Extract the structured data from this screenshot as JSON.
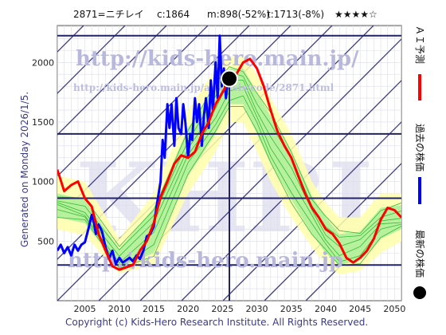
{
  "header": {
    "code": "2871=ニチレイ",
    "current": "c:1864",
    "median": "m:898(-52%)",
    "target": "t:1713(-8%)",
    "stars": "★★★★☆"
  },
  "side_label": "Generated on Monday 2026/1/5.",
  "footer": "Copyright (c) Kids-Hero Research Institute. All Rights Reserved.",
  "watermark": {
    "main": "http://kids-hero.main.jp/",
    "sub": "http://kids-hero.main.jp/analysis/code/2871.html",
    "bottom": "http://kids-hero.main.jp",
    "big": "KHRI"
  },
  "legend": {
    "ai_forecast": "ＡＩ予測",
    "past_price": "過去の株価",
    "latest_price": "最新の株価"
  },
  "colors": {
    "ai_forecast": "#ff0000",
    "past_price": "#0000ff",
    "latest_price": "#000000",
    "band_outer": "#ffffaa",
    "band_inner": "#aaee99",
    "band_lines": "#33bb33",
    "grid": "#9999bb",
    "levels": "#222266"
  },
  "chart_data": {
    "type": "line",
    "xlim": [
      2001,
      2051
    ],
    "ylim": [
      0,
      2310
    ],
    "x_ticks": [
      2005,
      2010,
      2015,
      2020,
      2025,
      2030,
      2035,
      2040,
      2045,
      2050
    ],
    "y_ticks": [
      500,
      1000,
      1500,
      2000
    ],
    "grid": true,
    "latest_point": {
      "x": 2026.0,
      "y": 1864
    },
    "current_year": 2026.0,
    "horizontal_levels": [
      2225,
      1400,
      860,
      300
    ],
    "series": [
      {
        "name": "過去の株価",
        "x": [
          2001.0,
          2001.5,
          2002.0,
          2002.5,
          2003.0,
          2003.5,
          2004.0,
          2004.5,
          2005.0,
          2005.5,
          2006.0,
          2006.3,
          2006.6,
          2007.0,
          2007.5,
          2008.0,
          2008.5,
          2009.0,
          2009.5,
          2010.0,
          2010.5,
          2011.0,
          2011.5,
          2012.0,
          2012.5,
          2013.0,
          2013.5,
          2014.0,
          2014.5,
          2015.0,
          2015.5,
          2016.0,
          2016.3,
          2016.6,
          2017.0,
          2017.3,
          2017.6,
          2018.0,
          2018.3,
          2018.6,
          2019.0,
          2019.3,
          2019.6,
          2020.0,
          2020.3,
          2020.6,
          2021.0,
          2021.3,
          2021.6,
          2022.0,
          2022.3,
          2022.6,
          2023.0,
          2023.3,
          2023.6,
          2024.0,
          2024.3,
          2024.6,
          2024.9,
          2025.2,
          2025.5,
          2025.8
        ],
        "values": [
          420,
          470,
          400,
          450,
          380,
          470,
          420,
          470,
          490,
          600,
          720,
          660,
          560,
          640,
          580,
          450,
          350,
          420,
          310,
          360,
          320,
          340,
          360,
          330,
          380,
          350,
          420,
          540,
          560,
          620,
          820,
          1000,
          1350,
          1200,
          1650,
          1450,
          1650,
          1300,
          1700,
          1450,
          1400,
          1650,
          1500,
          1200,
          1400,
          1350,
          1700,
          1500,
          1650,
          1300,
          1550,
          1700,
          1450,
          1850,
          1600,
          2000,
          1700,
          2225,
          1800,
          1950,
          1700,
          1864
        ]
      },
      {
        "name": "ＡＩ予測",
        "x": [
          2001,
          2002,
          2003,
          2004,
          2005,
          2006,
          2007,
          2008,
          2009,
          2010,
          2011,
          2012,
          2013,
          2014,
          2015,
          2016,
          2017,
          2018,
          2019,
          2020,
          2021,
          2022,
          2023,
          2024,
          2025,
          2026,
          2027,
          2028,
          2029,
          2030,
          2031,
          2032,
          2033,
          2034,
          2035,
          2036,
          2037,
          2038,
          2039,
          2040,
          2041,
          2042,
          2043,
          2044,
          2045,
          2046,
          2047,
          2048,
          2049,
          2050,
          2051
        ],
        "values": [
          1100,
          920,
          970,
          1000,
          860,
          790,
          560,
          420,
          290,
          260,
          280,
          300,
          420,
          500,
          650,
          870,
          1000,
          1150,
          1220,
          1200,
          1250,
          1400,
          1500,
          1650,
          1750,
          1850,
          1900,
          2000,
          2030,
          1950,
          1800,
          1600,
          1420,
          1300,
          1200,
          1050,
          900,
          780,
          700,
          600,
          560,
          480,
          360,
          320,
          360,
          420,
          520,
          680,
          780,
          760,
          700
        ]
      }
    ],
    "forecast_band": {
      "x": [
        2001,
        2005,
        2010,
        2015,
        2020,
        2024,
        2026,
        2028,
        2030,
        2032,
        2035,
        2038,
        2040,
        2042,
        2045,
        2048,
        2051
      ],
      "outer_upper": [
        1050,
        1000,
        520,
        900,
        1600,
        1950,
        2050,
        2050,
        1900,
        1700,
        1400,
        1000,
        820,
        700,
        700,
        900,
        900
      ],
      "outer_lower": [
        600,
        550,
        230,
        300,
        900,
        1250,
        1500,
        1500,
        1250,
        1000,
        700,
        450,
        300,
        220,
        250,
        400,
        500
      ],
      "inner_upper": [
        900,
        850,
        430,
        780,
        1450,
        1800,
        1950,
        1950,
        1750,
        1550,
        1250,
        880,
        700,
        560,
        580,
        780,
        800
      ],
      "inner_lower": [
        700,
        650,
        280,
        400,
        1050,
        1400,
        1650,
        1650,
        1400,
        1150,
        850,
        560,
        400,
        300,
        340,
        520,
        600
      ]
    }
  }
}
